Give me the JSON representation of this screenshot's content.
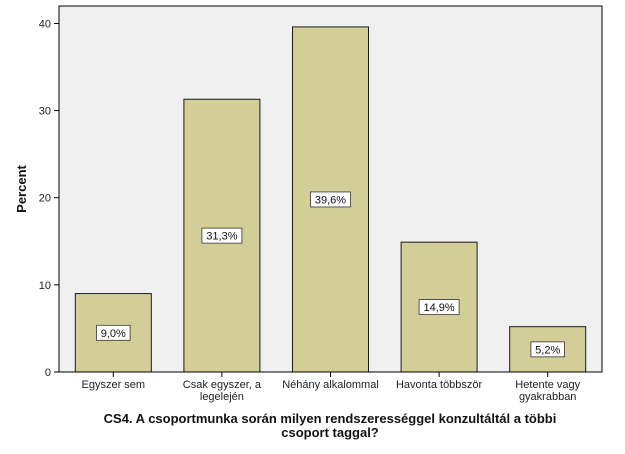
{
  "chart_data": {
    "type": "bar",
    "title": "",
    "xlabel_lines": [
      "CS4. A csoportmunka során milyen rendszerességgel konzultáltál a többi",
      "csoport taggal?"
    ],
    "ylabel": "Percent",
    "ylim": [
      0,
      42
    ],
    "yticks": [
      0,
      10,
      20,
      30,
      40
    ],
    "grid": false,
    "categories": [
      [
        "Egyszer sem"
      ],
      [
        "Csak egyszer, a",
        "legelején"
      ],
      [
        "Néhány alkalommal"
      ],
      [
        "Havonta többször"
      ],
      [
        "Hetente vagy",
        "gyakrabban"
      ]
    ],
    "values": [
      9.0,
      31.3,
      39.6,
      14.9,
      5.2
    ],
    "data_labels": [
      "9,0%",
      "31,3%",
      "39,6%",
      "14,9%",
      "5,2%"
    ],
    "colors": {
      "plot_background": "#f0f0f0",
      "bar_fill": "#d3ce97",
      "bar_stroke": "#1a1a1a",
      "axis": "#000000"
    }
  }
}
